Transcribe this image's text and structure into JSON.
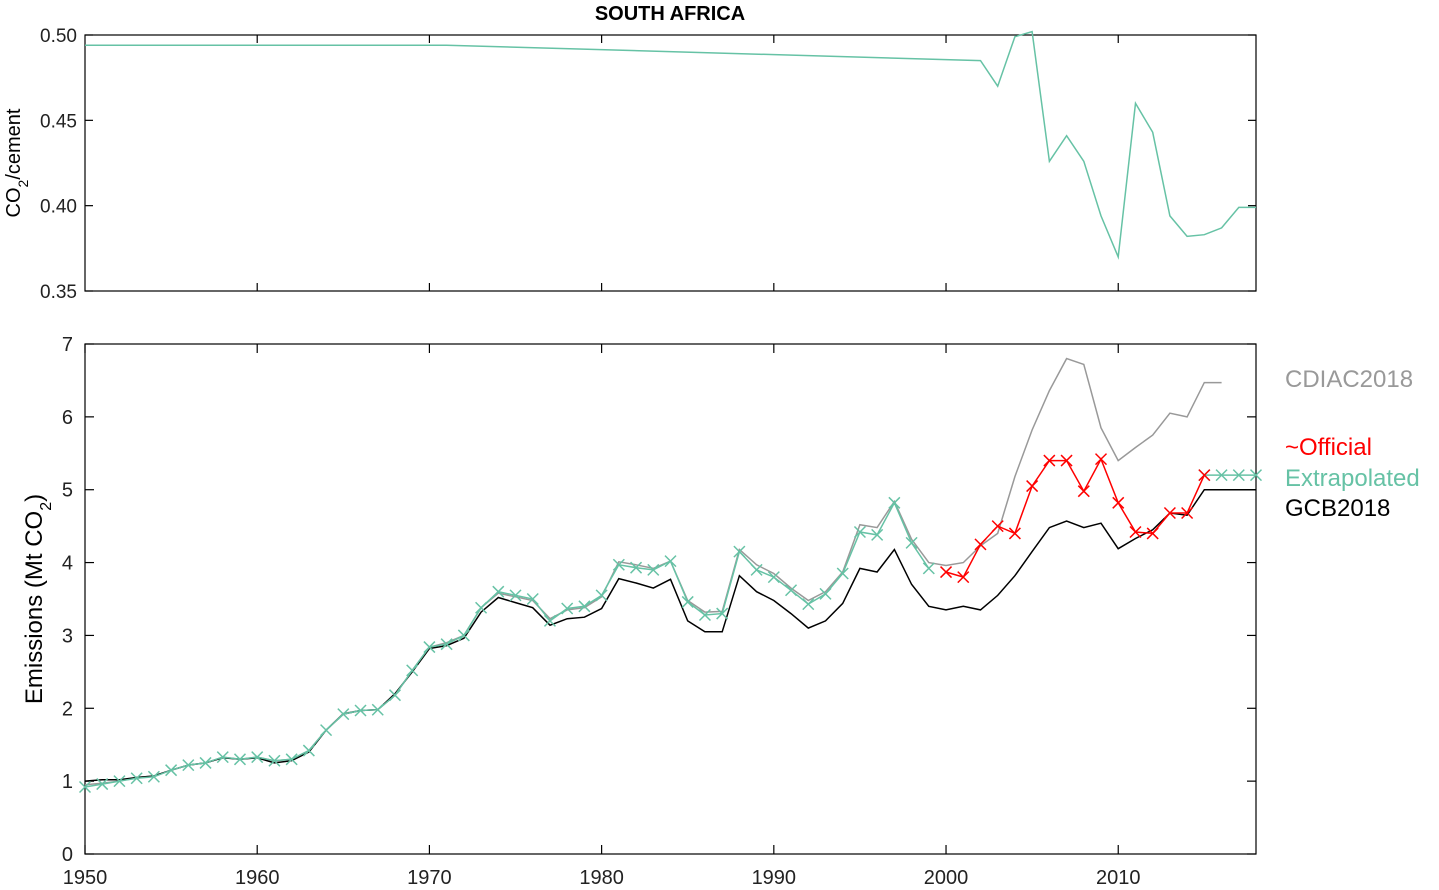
{
  "chart_data": [
    {
      "type": "line",
      "title": "SOUTH AFRICA",
      "ylabel_main": "CO",
      "ylabel_sub": "2",
      "ylabel_tail": "/cement",
      "xlim": [
        1950,
        2018
      ],
      "ylim": [
        0.35,
        0.5
      ],
      "yticks": [
        "0.35",
        "0.40",
        "0.45",
        "0.50"
      ],
      "xticks": [
        1960,
        1970,
        1980,
        1990,
        2000,
        2010
      ],
      "color": "#66c2a5",
      "x": [
        1950,
        1971,
        2002,
        2003,
        2004,
        2005,
        2006,
        2007,
        2008,
        2009,
        2010,
        2011,
        2012,
        2013,
        2014,
        2015,
        2016,
        2017,
        2018
      ],
      "y": [
        0.494,
        0.494,
        0.485,
        0.47,
        0.499,
        0.502,
        0.426,
        0.441,
        0.426,
        0.394,
        0.37,
        0.46,
        0.443,
        0.394,
        0.382,
        0.383,
        0.387,
        0.399,
        0.399
      ]
    },
    {
      "type": "line",
      "ylabel_main": "Emissions (Mt CO",
      "ylabel_sub": "2",
      "ylabel_tail": ")",
      "xlim": [
        1950,
        2018
      ],
      "ylim": [
        0,
        7
      ],
      "yticks": [
        "0",
        "1",
        "2",
        "3",
        "4",
        "5",
        "6",
        "7"
      ],
      "xticks": [
        "1950",
        "1960",
        "1970",
        "1980",
        "1990",
        "2000",
        "2010"
      ],
      "series": [
        {
          "name": "CDIAC2018",
          "color": "#999999",
          "x0": 1950,
          "values": [
            0.95,
            0.97,
            1.0,
            1.05,
            1.07,
            1.15,
            1.22,
            1.25,
            1.33,
            1.3,
            1.33,
            1.28,
            1.3,
            1.42,
            1.7,
            1.93,
            1.97,
            1.98,
            2.18,
            2.52,
            2.84,
            2.9,
            3.0,
            3.38,
            3.58,
            3.53,
            3.48,
            3.23,
            3.35,
            3.38,
            3.53,
            4.01,
            3.97,
            3.92,
            4.02,
            3.48,
            3.32,
            3.33,
            4.18,
            3.97,
            3.85,
            3.65,
            3.48,
            3.6,
            3.87,
            4.52,
            4.48,
            4.84,
            4.32,
            4.0,
            3.96,
            4.0,
            4.23,
            4.4,
            5.18,
            5.82,
            6.36,
            6.8,
            6.72,
            5.85,
            5.4,
            5.58,
            5.75,
            6.05,
            6.0,
            6.47,
            6.47
          ]
        },
        {
          "name": "GCB2018",
          "color": "#000000",
          "x0": 1950,
          "values": [
            1.0,
            1.02,
            1.02,
            1.05,
            1.07,
            1.15,
            1.22,
            1.25,
            1.32,
            1.3,
            1.32,
            1.25,
            1.28,
            1.4,
            1.7,
            1.92,
            1.97,
            1.98,
            2.2,
            2.5,
            2.82,
            2.86,
            2.96,
            3.32,
            3.52,
            3.45,
            3.38,
            3.14,
            3.23,
            3.25,
            3.37,
            3.78,
            3.72,
            3.65,
            3.77,
            3.2,
            3.05,
            3.05,
            3.82,
            3.6,
            3.48,
            3.3,
            3.1,
            3.2,
            3.44,
            3.92,
            3.87,
            4.18,
            3.7,
            3.4,
            3.35,
            3.4,
            3.35,
            3.55,
            3.82,
            4.15,
            4.48,
            4.57,
            4.48,
            4.54,
            4.19,
            4.33,
            4.45,
            4.68,
            4.65,
            5.0,
            5.0,
            5.0,
            5.0
          ]
        },
        {
          "name": "Extrapolated",
          "color": "#66c2a5",
          "x0": 1950,
          "values": [
            0.92,
            0.96,
            1.0,
            1.04,
            1.06,
            1.15,
            1.22,
            1.25,
            1.33,
            1.3,
            1.33,
            1.28,
            1.3,
            1.42,
            1.7,
            1.92,
            1.97,
            1.98,
            2.18,
            2.52,
            2.84,
            2.88,
            3.0,
            3.38,
            3.6,
            3.55,
            3.5,
            3.2,
            3.37,
            3.4,
            3.55,
            3.97,
            3.93,
            3.9,
            4.02,
            3.46,
            3.28,
            3.3,
            4.15,
            3.9,
            3.8,
            3.62,
            3.43,
            3.57,
            3.85,
            4.42,
            4.38,
            4.82,
            4.27,
            3.92
          ],
          "tail_x0": 2015,
          "tail_values": [
            5.2,
            5.2,
            5.2,
            5.2
          ]
        },
        {
          "name": "~Official",
          "color": "#ff0000",
          "x0": 2000,
          "values": [
            3.87,
            3.8,
            4.25,
            4.5,
            4.4,
            5.05,
            5.4,
            5.4,
            4.98,
            5.42,
            4.82,
            4.42,
            4.4,
            4.68,
            4.68,
            5.2
          ]
        }
      ],
      "legend": [
        {
          "label": "CDIAC2018",
          "color": "#999999"
        },
        {
          "label": "~Official",
          "color": "#ff0000"
        },
        {
          "label": "Extrapolated",
          "color": "#66c2a5"
        },
        {
          "label": "GCB2018",
          "color": "#000000"
        }
      ]
    }
  ]
}
